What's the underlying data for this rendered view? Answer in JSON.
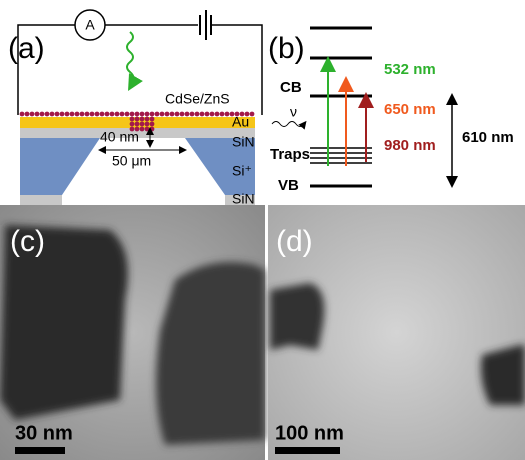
{
  "panel_a": {
    "label": "(a)",
    "ammeter": "A",
    "material": "CdSe/ZnS",
    "layer_au": "Au",
    "layer_sin_top": "SiN",
    "thickness": "40 nm",
    "width": "50 μm",
    "layer_si": "Si⁺",
    "layer_sin_bottom": "SiN"
  },
  "panel_b": {
    "label": "(b)",
    "cb": "CB",
    "photon": "ν",
    "traps": "Traps",
    "vb": "VB",
    "wavelengths": [
      "532 nm",
      "650 nm",
      "980 nm"
    ],
    "gap": "610 nm"
  },
  "panel_c": {
    "label": "(c)",
    "scale_bar": "30 nm"
  },
  "panel_d": {
    "label": "(d)",
    "scale_bar": "100 nm"
  }
}
